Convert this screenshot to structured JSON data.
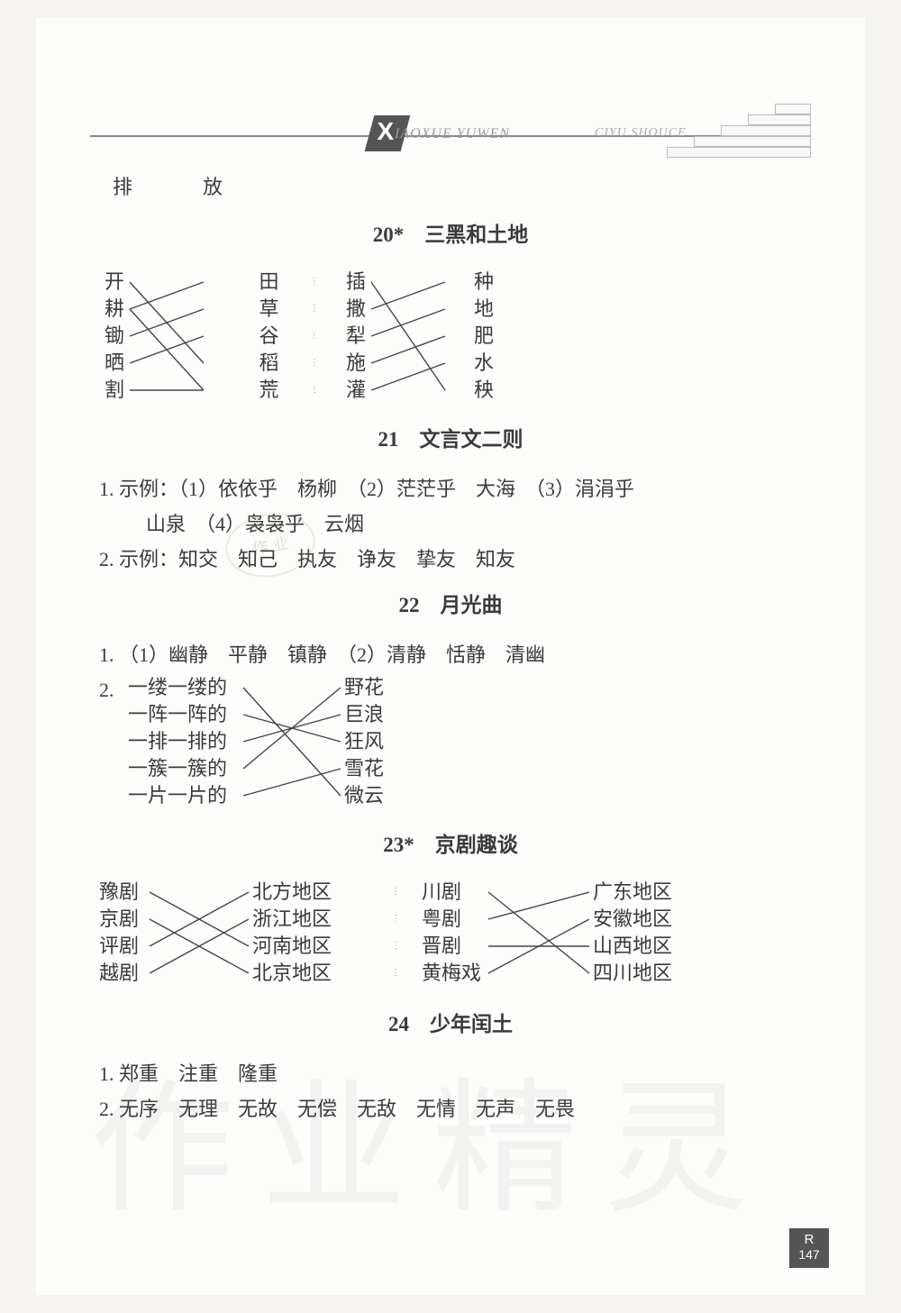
{
  "header": {
    "pinyin_left": "IAOXUE YUWEN",
    "pinyin_right": "CIYU SHOUCE"
  },
  "top_words": "排　放",
  "sections": {
    "s20": {
      "title": "20*　三黑和土地",
      "match1": {
        "left": [
          "开",
          "耕",
          "锄",
          "晒",
          "割"
        ],
        "right": [
          "田",
          "草",
          "谷",
          "稻",
          "荒"
        ],
        "edges": [
          [
            0,
            3
          ],
          [
            1,
            0
          ],
          [
            2,
            1
          ],
          [
            3,
            2
          ],
          [
            4,
            4
          ],
          [
            1,
            4
          ]
        ]
      },
      "match2": {
        "left": [
          "插",
          "撒",
          "犁",
          "施",
          "灌"
        ],
        "right": [
          "种",
          "地",
          "肥",
          "水",
          "秧"
        ],
        "edges": [
          [
            0,
            4
          ],
          [
            1,
            0
          ],
          [
            2,
            1
          ],
          [
            3,
            2
          ],
          [
            4,
            3
          ]
        ]
      }
    },
    "s21": {
      "title": "21　文言文二则",
      "q1": "1. 示例：（1）依依乎　杨柳　（2）茫茫乎　大海　（3）涓涓乎",
      "q1b": "山泉　（4）袅袅乎　云烟",
      "q2": "2. 示例：知交　知己　执友　诤友　挚友　知友"
    },
    "s22": {
      "title": "22　月光曲",
      "q1": "1. （1）幽静　平静　镇静　（2）清静　恬静　清幽",
      "q2_label": "2.",
      "match": {
        "left": [
          "一缕一缕的",
          "一阵一阵的",
          "一排一排的",
          "一簇一簇的",
          "一片一片的"
        ],
        "right": [
          "野花",
          "巨浪",
          "狂风",
          "雪花",
          "微云"
        ],
        "edges": [
          [
            0,
            4
          ],
          [
            1,
            2
          ],
          [
            2,
            1
          ],
          [
            3,
            0
          ],
          [
            4,
            3
          ]
        ]
      }
    },
    "s23": {
      "title": "23*　京剧趣谈",
      "match1": {
        "left": [
          "豫剧",
          "京剧",
          "评剧",
          "越剧"
        ],
        "right": [
          "北方地区",
          "浙江地区",
          "河南地区",
          "北京地区"
        ],
        "edges": [
          [
            0,
            2
          ],
          [
            1,
            3
          ],
          [
            2,
            0
          ],
          [
            3,
            1
          ]
        ]
      },
      "match2": {
        "left": [
          "川剧",
          "粤剧",
          "晋剧",
          "黄梅戏"
        ],
        "right": [
          "广东地区",
          "安徽地区",
          "山西地区",
          "四川地区"
        ],
        "edges": [
          [
            0,
            3
          ],
          [
            1,
            0
          ],
          [
            2,
            2
          ],
          [
            3,
            1
          ]
        ]
      }
    },
    "s24": {
      "title": "24　少年闰土",
      "q1": "1. 郑重　注重　隆重",
      "q2": "2. 无序　无理　无故　无偿　无敌　无情　无声　无畏"
    }
  },
  "stamp_text": "作 业",
  "watermark": "作业精灵",
  "page_label_r": "R",
  "page_number": "147",
  "colors": {
    "text": "#3a3a3a",
    "line": "#555555",
    "bg": "#fdfdfc"
  }
}
